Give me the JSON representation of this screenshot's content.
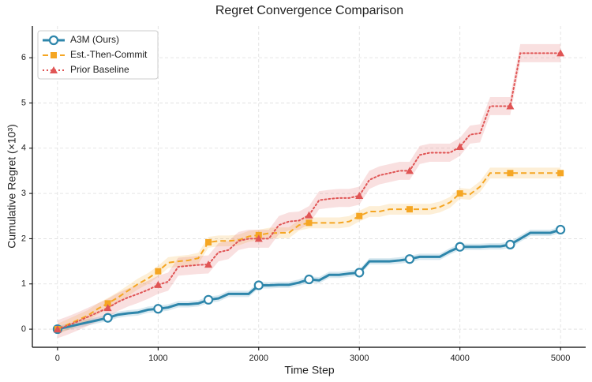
{
  "chart_data": {
    "type": "line",
    "title": "Regret Convergence Comparison",
    "x_label": "Time Step",
    "y_label": "Cumulative Regret (×10³)",
    "x": [
      0,
      100,
      200,
      300,
      400,
      500,
      600,
      700,
      800,
      900,
      1000,
      1100,
      1200,
      1300,
      1400,
      1500,
      1600,
      1700,
      1800,
      1900,
      2000,
      2100,
      2200,
      2300,
      2400,
      2500,
      2600,
      2700,
      2800,
      2900,
      3000,
      3100,
      3200,
      3300,
      3400,
      3500,
      3600,
      3700,
      3800,
      3900,
      4000,
      4100,
      4200,
      4300,
      4400,
      4500,
      4600,
      4700,
      4800,
      4900,
      5000
    ],
    "series": [
      {
        "name": "A3M (Ours)",
        "color": "#2e86ab",
        "marker": "circle",
        "dash": "solid",
        "band": 0.07,
        "values": [
          0,
          0.05,
          0.1,
          0.15,
          0.2,
          0.25,
          0.32,
          0.35,
          0.37,
          0.43,
          0.45,
          0.48,
          0.55,
          0.55,
          0.57,
          0.65,
          0.68,
          0.78,
          0.78,
          0.78,
          0.97,
          0.97,
          0.98,
          0.98,
          1.03,
          1.1,
          1.08,
          1.2,
          1.2,
          1.23,
          1.25,
          1.5,
          1.5,
          1.5,
          1.52,
          1.55,
          1.6,
          1.6,
          1.6,
          1.72,
          1.82,
          1.82,
          1.82,
          1.83,
          1.83,
          1.87,
          2.0,
          2.13,
          2.13,
          2.13,
          2.2
        ]
      },
      {
        "name": "Est.-Then-Commit",
        "color": "#f5a623",
        "marker": "square",
        "dash": "dashed",
        "band": 0.12,
        "values": [
          0,
          0.1,
          0.2,
          0.3,
          0.45,
          0.57,
          0.7,
          0.85,
          1.0,
          1.12,
          1.28,
          1.47,
          1.5,
          1.52,
          1.57,
          1.92,
          1.95,
          1.95,
          1.97,
          2.05,
          2.08,
          2.12,
          2.13,
          2.13,
          2.3,
          2.35,
          2.35,
          2.35,
          2.35,
          2.38,
          2.5,
          2.6,
          2.6,
          2.65,
          2.65,
          2.65,
          2.65,
          2.65,
          2.7,
          2.8,
          3.0,
          2.98,
          3.15,
          3.45,
          3.45,
          3.45,
          3.45,
          3.45,
          3.45,
          3.45,
          3.45
        ]
      },
      {
        "name": "Prior Baseline",
        "color": "#e05555",
        "marker": "triangle",
        "dash": "dotted",
        "band": 0.2,
        "values": [
          0,
          0.08,
          0.17,
          0.27,
          0.37,
          0.47,
          0.6,
          0.7,
          0.78,
          0.87,
          0.98,
          1.05,
          1.38,
          1.4,
          1.42,
          1.43,
          1.7,
          1.75,
          1.95,
          2.0,
          2.0,
          2.0,
          2.3,
          2.38,
          2.4,
          2.52,
          2.85,
          2.88,
          2.9,
          2.9,
          2.95,
          3.3,
          3.4,
          3.45,
          3.5,
          3.5,
          3.85,
          3.9,
          3.9,
          3.9,
          4.03,
          4.3,
          4.33,
          4.93,
          4.93,
          4.93,
          6.1,
          6.1,
          6.1,
          6.1,
          6.1
        ]
      }
    ],
    "xlim": [
      -250,
      5250
    ],
    "ylim": [
      -0.4,
      6.7
    ],
    "xticks": [
      0,
      1000,
      2000,
      3000,
      4000,
      5000
    ],
    "yticks": [
      0,
      1,
      2,
      3,
      4,
      5,
      6
    ],
    "grid": true,
    "legend": "upper left"
  }
}
